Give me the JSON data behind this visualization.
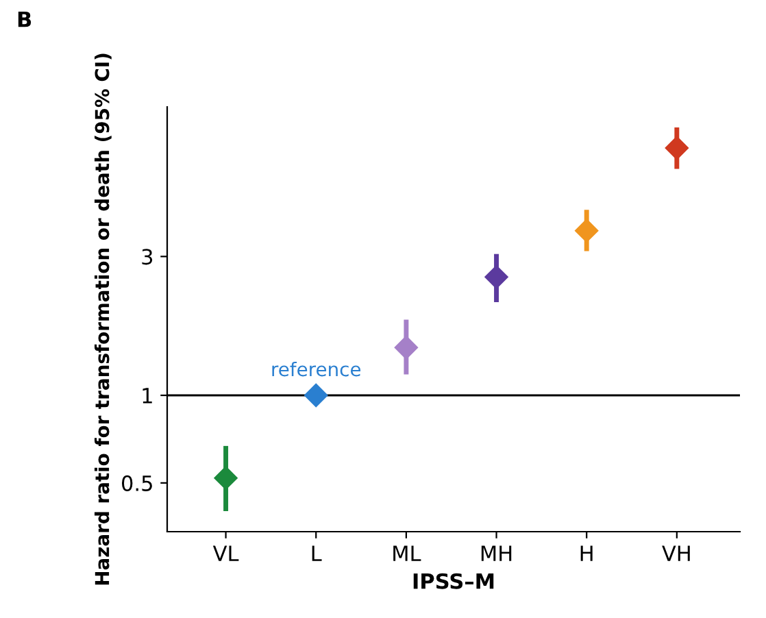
{
  "chart_data": {
    "type": "scatter",
    "title": "B",
    "xlabel": "IPSS–M",
    "ylabel": "Hazard ratio for transformation or death (95% CI)",
    "categories": [
      "VL",
      "L",
      "ML",
      "MH",
      "H",
      "VH"
    ],
    "values": [
      0.52,
      1,
      1.46,
      2.55,
      3.68,
      7.08
    ],
    "errors": [
      [
        0.4,
        0.67
      ],
      null,
      [
        1.18,
        1.82
      ],
      [
        2.09,
        3.06
      ],
      [
        3.13,
        4.34
      ],
      [
        6.0,
        8.33
      ]
    ],
    "colors": [
      "#1b8a3c",
      "#2a7fd0",
      "#a580c8",
      "#5b3a9e",
      "#f0951e",
      "#d0391f"
    ],
    "marker": "diamond",
    "log": "y",
    "ylim": [
      0.34,
      9.8
    ],
    "yticks": [
      0.5,
      1,
      3
    ],
    "ref_lines": [
      {
        "axis": "y",
        "value": 1,
        "color": "#000000"
      }
    ],
    "annotations": [
      {
        "text": "reference",
        "x": "L",
        "y": 1
      }
    ],
    "grid": false,
    "legend": false
  }
}
